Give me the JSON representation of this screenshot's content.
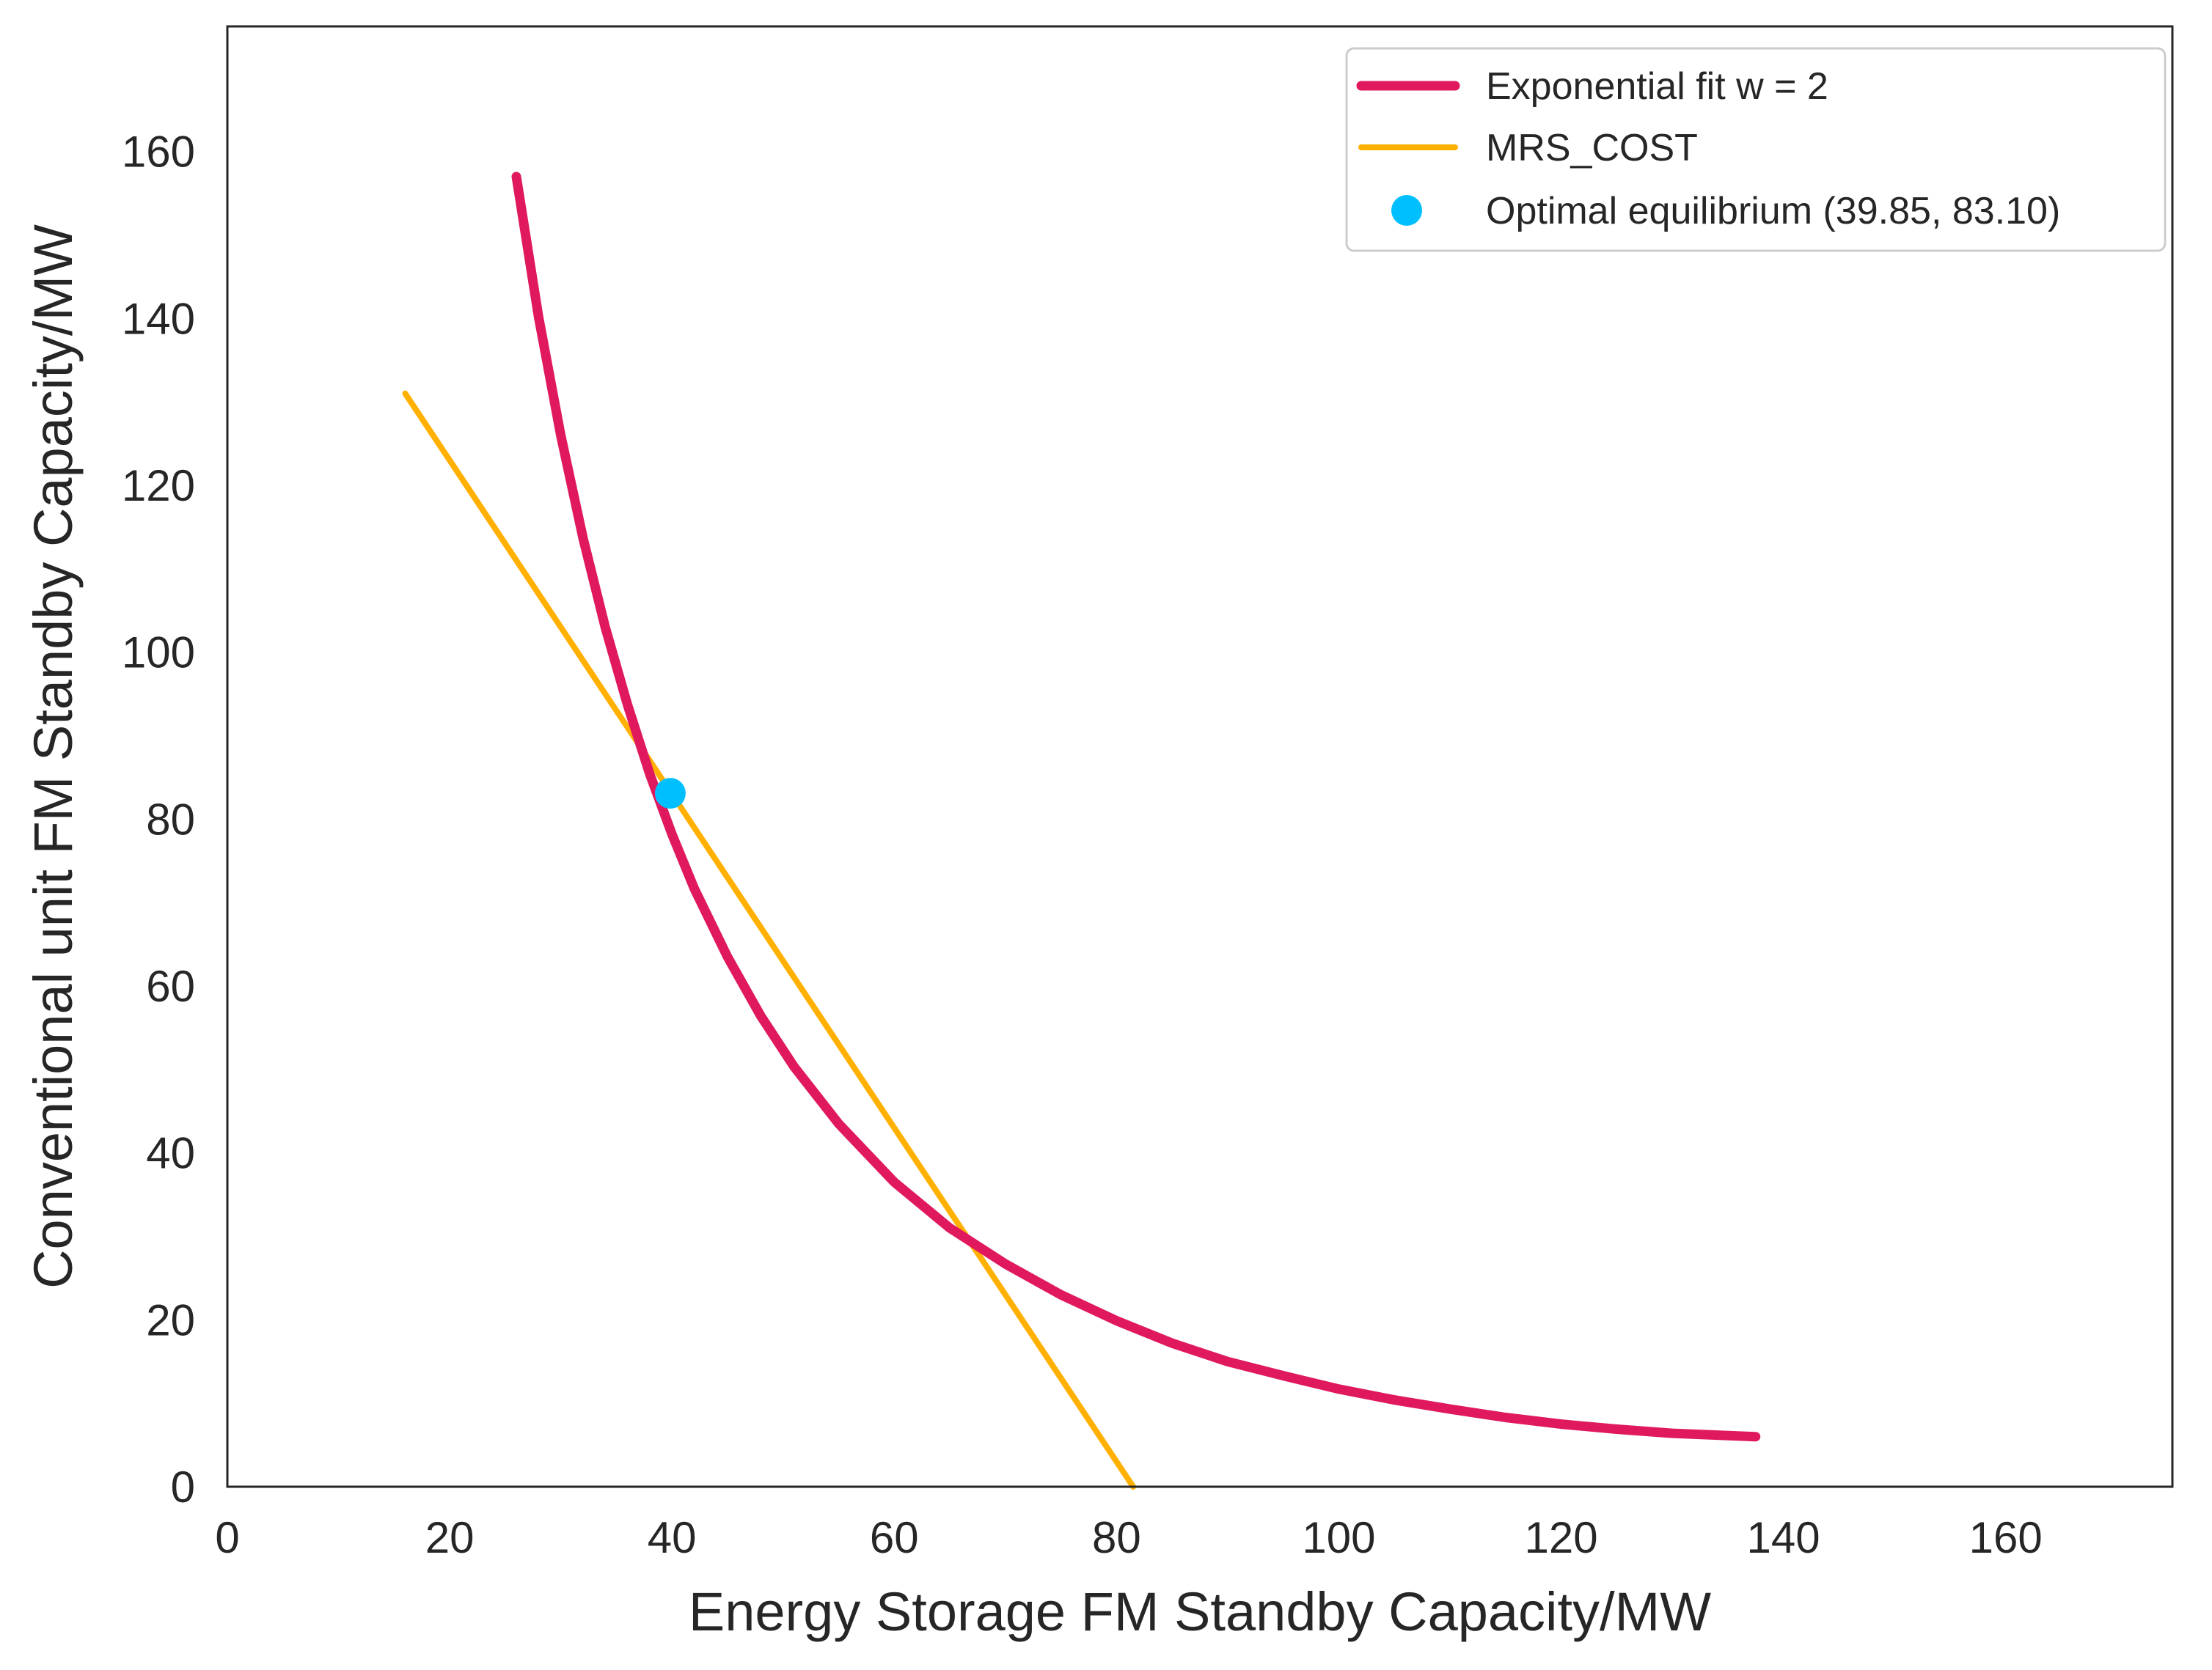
{
  "chart_data": {
    "type": "line",
    "title": "",
    "xlabel": "Energy Storage FM Standby Capacity/MW",
    "ylabel": "Conventional unit FM Standby Capacity/MW",
    "xlim": [
      0,
      175
    ],
    "ylim": [
      0,
      175
    ],
    "xticks": [
      0,
      20,
      40,
      60,
      80,
      100,
      120,
      140,
      160
    ],
    "yticks": [
      0,
      20,
      40,
      60,
      80,
      100,
      120,
      140,
      160
    ],
    "grid": false,
    "legend_position": "top-right",
    "series": [
      {
        "name": "Exponential fit w = 2",
        "kind": "line",
        "color": "#E0195F",
        "x": [
          26,
          28,
          30,
          32,
          34,
          36,
          38,
          40,
          42,
          45,
          48,
          51,
          55,
          60,
          65,
          70,
          75,
          80,
          85,
          90,
          95,
          100,
          105,
          110,
          115,
          120,
          125,
          130,
          137.5
        ],
        "y": [
          157.0,
          140.2,
          126.0,
          113.7,
          103.0,
          93.7,
          85.4,
          78.2,
          71.7,
          63.5,
          56.4,
          50.3,
          43.5,
          36.5,
          31.0,
          26.7,
          23.0,
          19.9,
          17.2,
          15.0,
          13.3,
          11.7,
          10.4,
          9.3,
          8.3,
          7.5,
          6.9,
          6.4,
          6.0
        ]
      },
      {
        "name": "MRS_COST",
        "kind": "line",
        "color": "#FFB000",
        "x": [
          16,
          81.5
        ],
        "y": [
          131.0,
          0.0
        ]
      },
      {
        "name": "Optimal equilibrium (39.85, 83.10)",
        "kind": "scatter",
        "color": "#00BFFF",
        "x": [
          39.85
        ],
        "y": [
          83.1
        ]
      }
    ]
  }
}
